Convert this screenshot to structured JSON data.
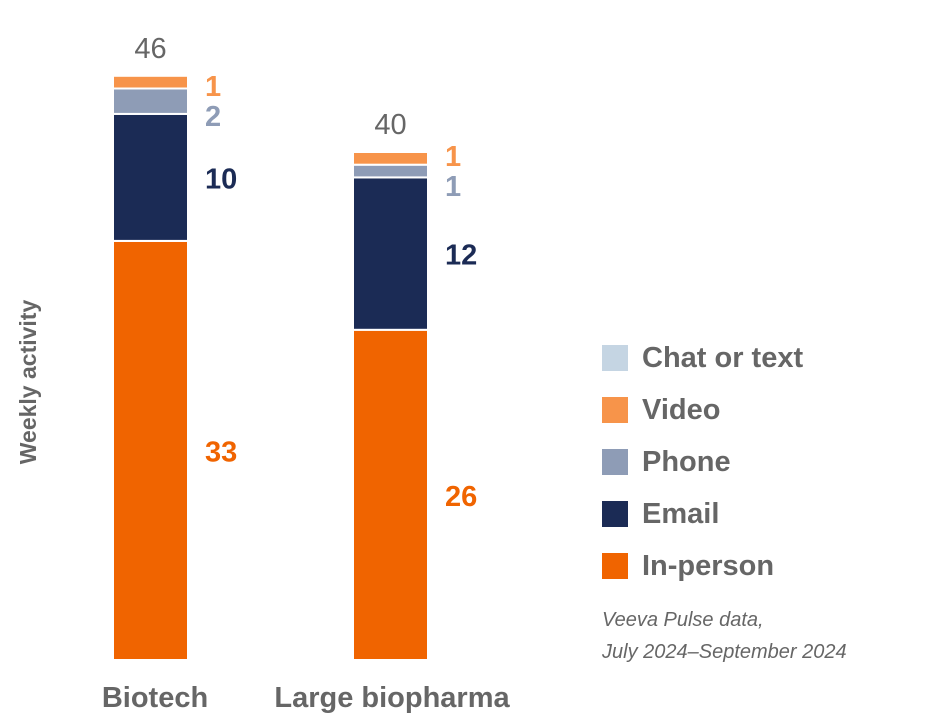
{
  "chart_data": {
    "type": "stacked-bar",
    "ylabel": "Weekly activity",
    "categories": [
      "Biotech",
      "Large biopharma"
    ],
    "totals": [
      46,
      40
    ],
    "series": [
      {
        "name": "In-person",
        "color": "#F06400",
        "values": [
          33,
          26
        ]
      },
      {
        "name": "Email",
        "color": "#1B2B55",
        "values": [
          10,
          12
        ]
      },
      {
        "name": "Phone",
        "color": "#8E9CB6",
        "values": [
          2,
          1
        ]
      },
      {
        "name": "Video",
        "color": "#F7944A",
        "values": [
          1,
          1
        ]
      },
      {
        "name": "Chat or text",
        "color": "#C5D5E3",
        "values": [
          0,
          0
        ]
      }
    ]
  },
  "legend": [
    {
      "label": "Chat or text",
      "color": "#C5D5E3"
    },
    {
      "label": "Video",
      "color": "#F7944A"
    },
    {
      "label": "Phone",
      "color": "#8E9CB6"
    },
    {
      "label": "Email",
      "color": "#1B2B55"
    },
    {
      "label": "In-person",
      "color": "#F06400"
    }
  ],
  "source": {
    "line1": "Veeva Pulse data,",
    "line2": "July 2024–September 2024"
  }
}
